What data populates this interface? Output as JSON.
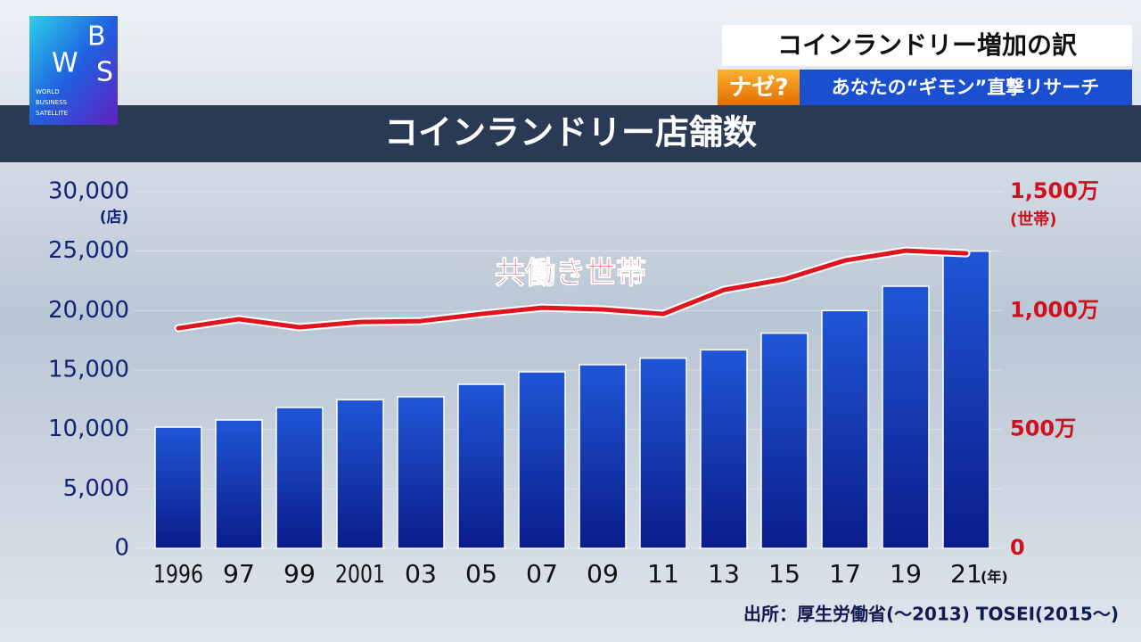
{
  "header": {
    "headline": "コインランドリー増加の訳",
    "tag": "ナゼ?",
    "subline": "あなたの“ギモン”直撃リサーチ"
  },
  "logo": {
    "letters": [
      "W",
      "B",
      "S"
    ],
    "lines": [
      "WORLD",
      "BUSINESS",
      "SATELLITE"
    ]
  },
  "source": "出所：厚生労働省(～2013)  TOSEI(2015～)",
  "chart_data": {
    "type": "bar",
    "title": "コインランドリー店舗数",
    "categories": [
      "1996",
      "97",
      "99",
      "2001",
      "03",
      "05",
      "07",
      "09",
      "11",
      "13",
      "15",
      "17",
      "19",
      "21"
    ],
    "x_unit": "(年)",
    "y_unit": "(店)",
    "y2_unit": "(世帯)",
    "series": [
      {
        "color": "#1440c8",
        "values": [
          10200,
          10800,
          11850,
          12500,
          12750,
          13800,
          14850,
          15450,
          16000,
          16700,
          18100,
          20000,
          22050,
          25000
        ]
      },
      {
        "name": "共働き世帯",
        "type": "line",
        "axis": "y2",
        "color": "#e0141e",
        "values": [
          926,
          964,
          930,
          952,
          956,
          986,
          1012,
          1005,
          986,
          1087,
          1132,
          1211,
          1252,
          1241
        ]
      }
    ],
    "ylim": [
      0,
      30000
    ],
    "yticks": [
      0,
      {
        "value": 5000,
        "label": "5,000"
      },
      {
        "value": 10000,
        "label": "10,000"
      },
      {
        "value": 15000,
        "label": "15,000"
      },
      {
        "value": 20000,
        "label": "20,000"
      },
      {
        "value": 25000,
        "label": "25,000"
      },
      {
        "value": 30000,
        "label": "30,000"
      }
    ],
    "y2lim": [
      0,
      1500
    ],
    "y2ticks": [
      0,
      {
        "value": 500,
        "label": "500万"
      },
      {
        "value": 1000,
        "label": "1,000万"
      },
      {
        "value": 1500,
        "label": "1,500万"
      }
    ],
    "grid": true
  }
}
